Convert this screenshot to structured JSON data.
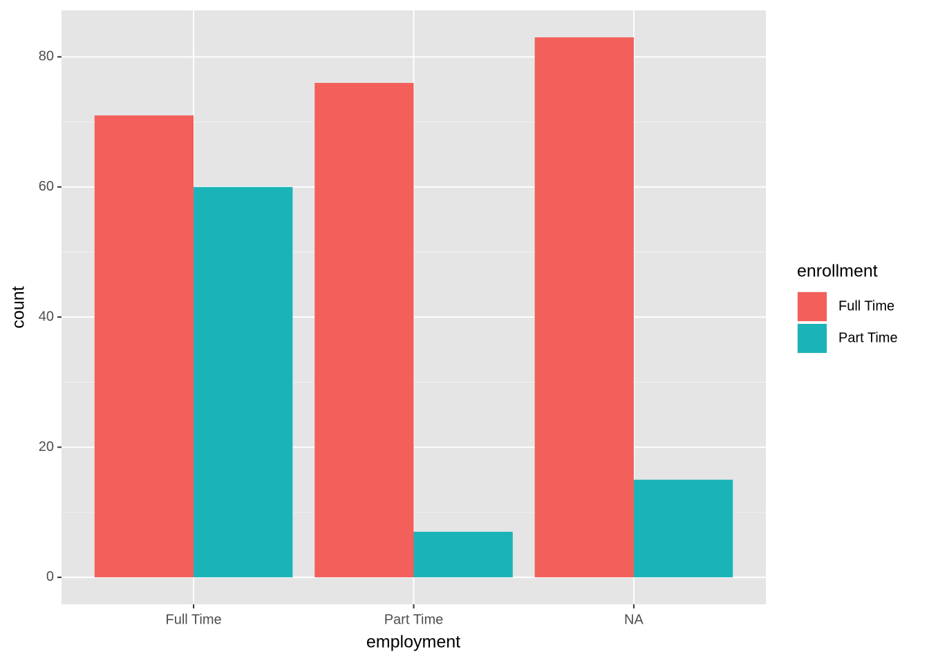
{
  "chart_data": {
    "type": "bar",
    "x_label": "employment",
    "y_label": "count",
    "categories": [
      "Full Time",
      "Part Time",
      "NA"
    ],
    "series": [
      {
        "name": "Full Time",
        "color": "#f35f5b",
        "values": [
          71,
          76,
          83
        ]
      },
      {
        "name": "Part Time",
        "color": "#1ab4b8",
        "values": [
          60,
          7,
          15
        ]
      }
    ],
    "legend_title": "enrollment",
    "legend_position": "right",
    "ylim": [
      -4.15,
      87.15
    ],
    "yticks": [
      0,
      20,
      40,
      60,
      80
    ],
    "minor_yticks": [
      10,
      30,
      50,
      70
    ],
    "grid": true
  }
}
